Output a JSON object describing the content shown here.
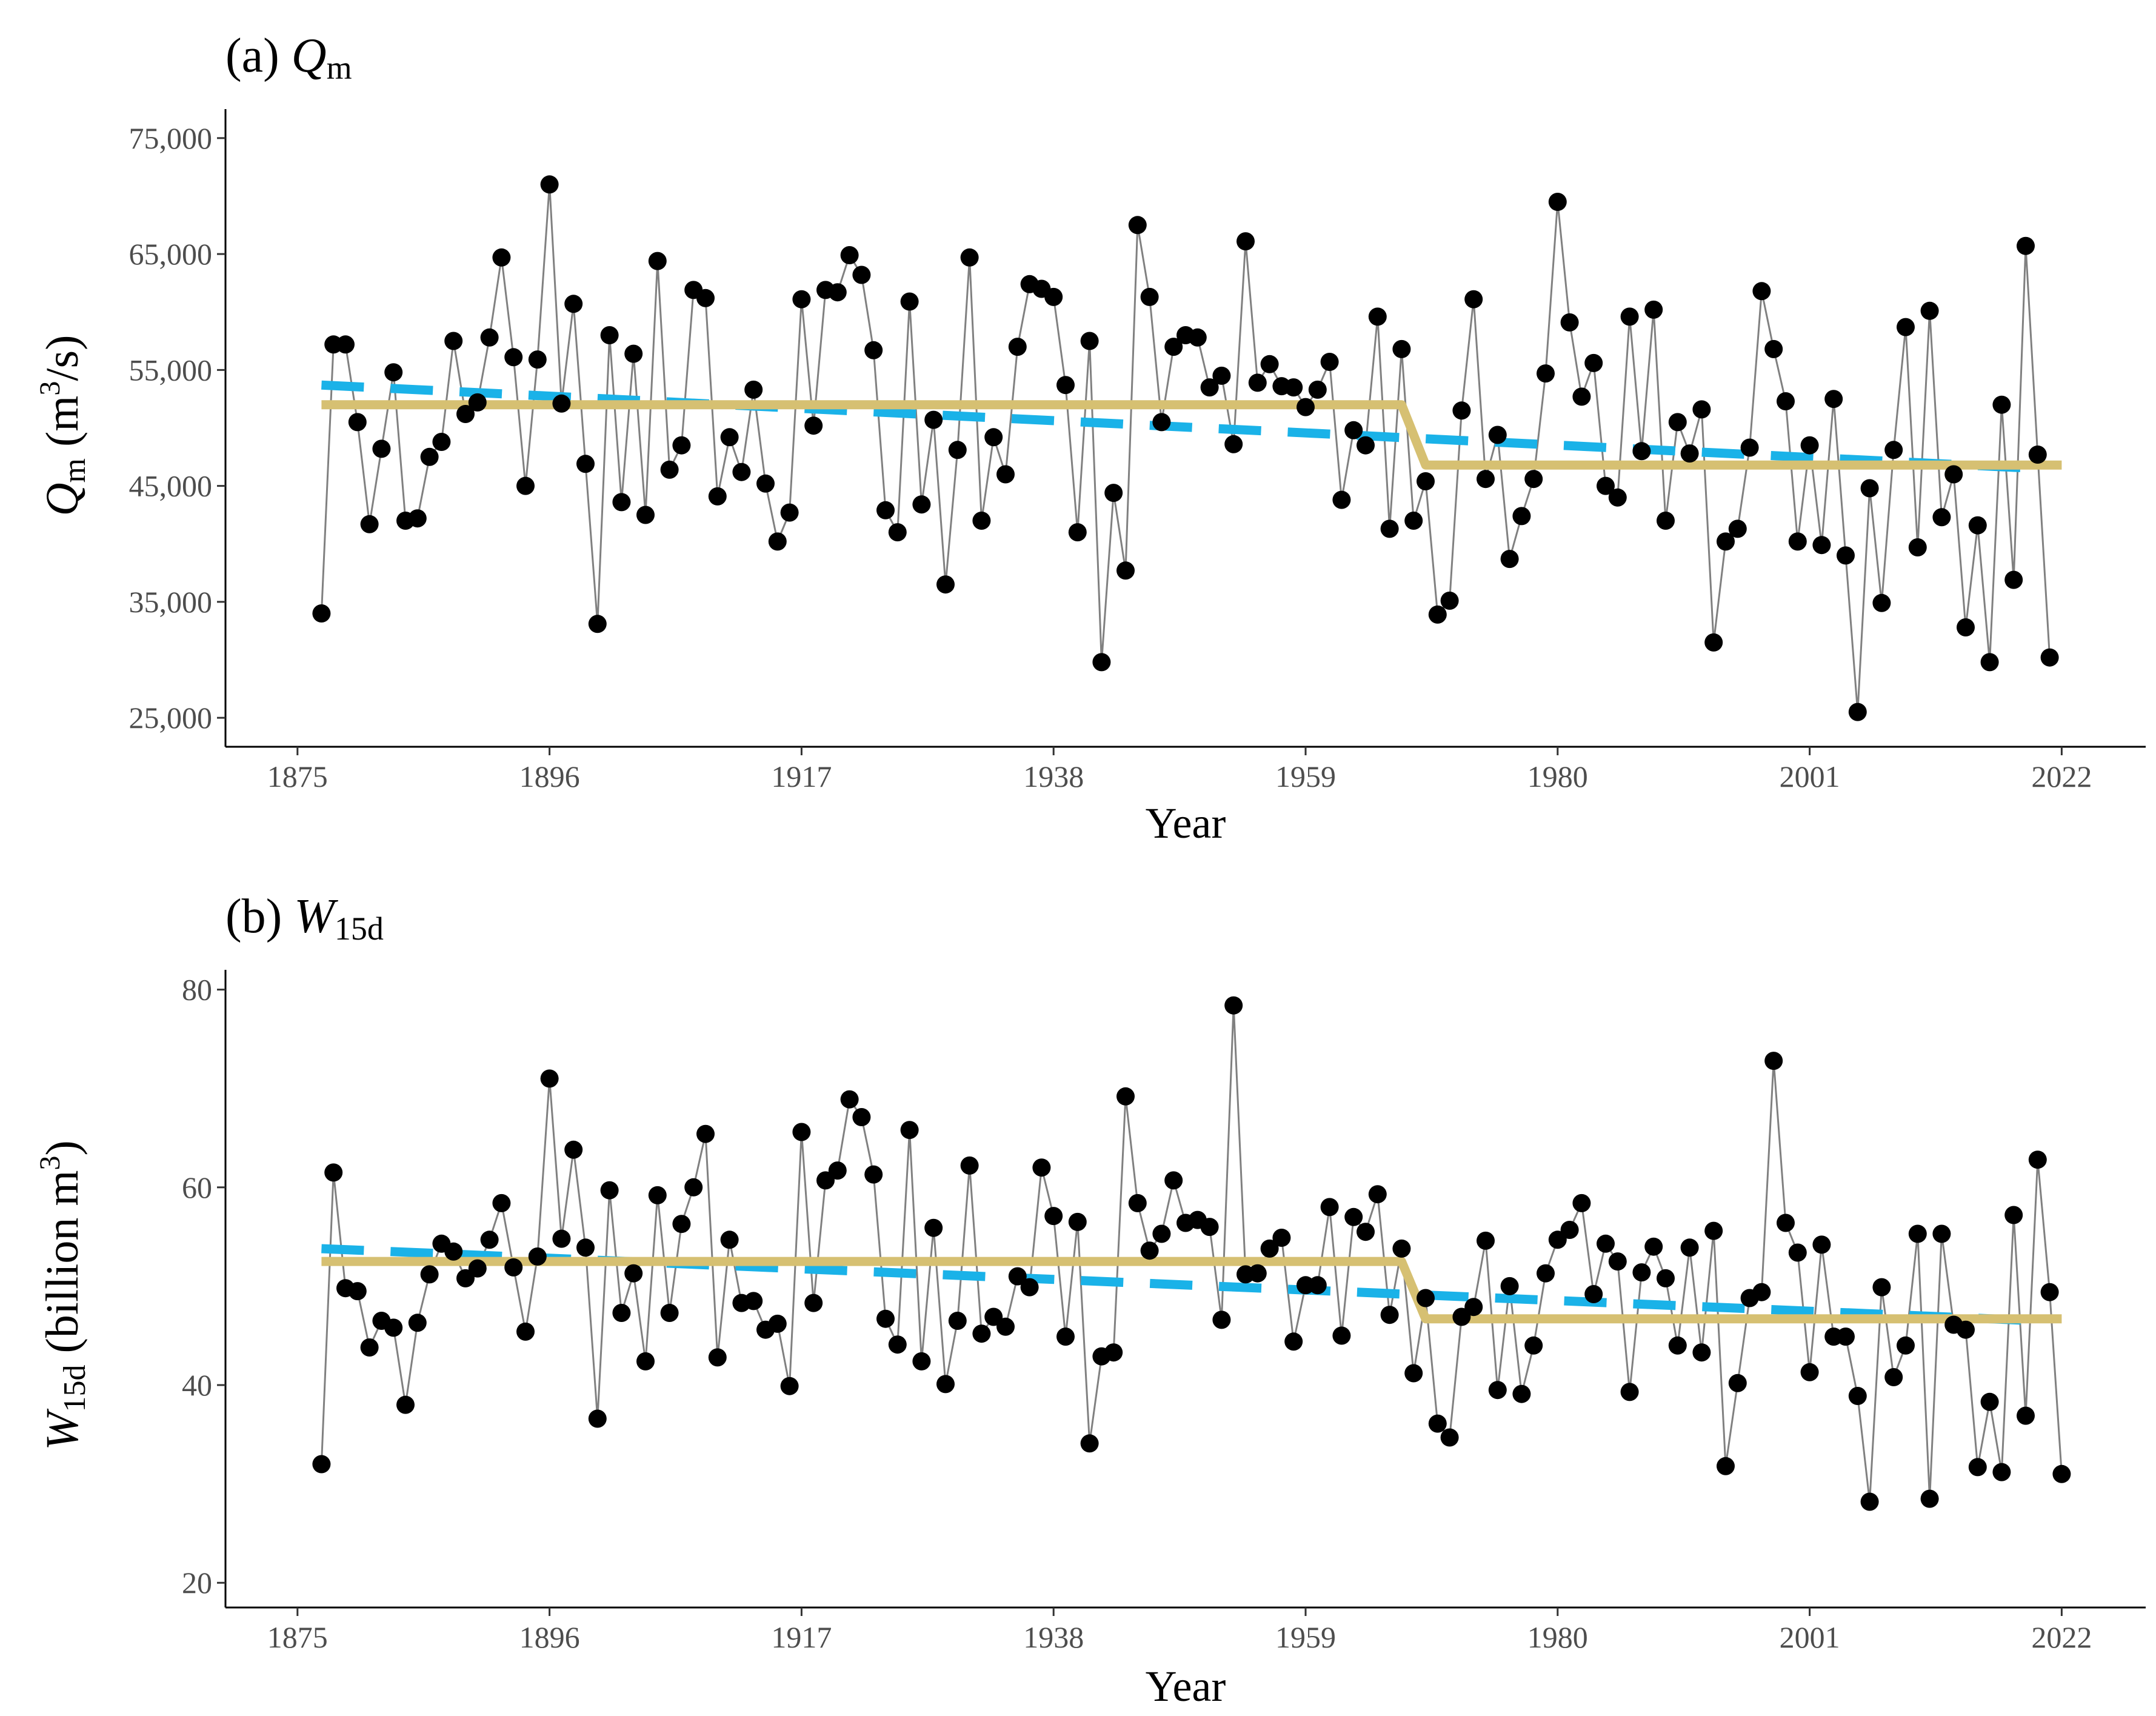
{
  "colors": {
    "observed_line": "#808080",
    "points": "#000000",
    "trend_line": "#1ab2e8",
    "step_line": "#d6c072",
    "axis": "#000000"
  },
  "chart_data": [
    {
      "type": "line",
      "panel": "a",
      "title_prefix": "(a) ",
      "title_var": "Q",
      "title_sub": "m",
      "xlabel": "Year",
      "ylabel_var": "Q",
      "ylabel_sub": "m",
      "ylabel_unit_open": " (m",
      "ylabel_unit_sup": "3",
      "ylabel_unit_close": "/s)",
      "xlim": [
        1869,
        2029
      ],
      "ylim": [
        22500,
        77500
      ],
      "xticks": [
        1875,
        1896,
        1917,
        1938,
        1959,
        1980,
        2001,
        2022
      ],
      "xtick_labels": [
        "1875",
        "1896",
        "1917",
        "1938",
        "1959",
        "1980",
        "2001",
        "2022"
      ],
      "yticks": [
        25000,
        35000,
        45000,
        55000,
        65000,
        75000
      ],
      "ytick_labels": [
        "25,000",
        "35,000",
        "45,000",
        "55,000",
        "65,000",
        "75,000"
      ],
      "start_year": 1877,
      "values": [
        34000,
        57200,
        57200,
        50500,
        41700,
        48200,
        54800,
        42000,
        42200,
        47500,
        48800,
        57500,
        51200,
        52200,
        57800,
        64700,
        56100,
        45000,
        55900,
        71000,
        52100,
        60700,
        46900,
        33100,
        58000,
        43600,
        56400,
        42500,
        64400,
        46400,
        48500,
        61900,
        61200,
        44100,
        49200,
        46200,
        53300,
        45200,
        40200,
        42700,
        61100,
        50200,
        61900,
        61700,
        64900,
        63200,
        56700,
        42900,
        41000,
        60900,
        43400,
        50700,
        36500,
        48100,
        64700,
        42000,
        49200,
        46000,
        57000,
        62400,
        62000,
        61300,
        53700,
        41000,
        57500,
        29800,
        44400,
        37700,
        67500,
        61300,
        50500,
        57000,
        58000,
        57800,
        53500,
        54500,
        48600,
        66100,
        53900,
        55500,
        53600,
        53500,
        51800,
        53300,
        55700,
        43800,
        49800,
        48500,
        59600,
        41300,
        56800,
        42000,
        45400,
        33900,
        35100,
        51500,
        61100,
        45600,
        49400,
        38700,
        42400,
        45600,
        54700,
        69500,
        59100,
        52700,
        55600,
        45000,
        44000,
        59600,
        48000,
        60200,
        42000,
        50500,
        47800,
        51600,
        31500,
        40200,
        41300,
        48300,
        61800,
        56800,
        52300,
        40200,
        48500,
        39900,
        52500,
        39000,
        25500,
        44800,
        34900,
        48100,
        58700,
        39700,
        60100,
        42300,
        46000,
        32800,
        41600,
        29800,
        52000,
        36900,
        65700,
        47700,
        30200
      ],
      "trend": {
        "start": [
          1877,
          53700
        ],
        "end": [
          2020,
          46500
        ]
      },
      "step": {
        "before": 52000,
        "after": 46800,
        "break_start": 1967,
        "break_end": 1969,
        "x_start": 1877,
        "x_end": 2022
      }
    },
    {
      "type": "line",
      "panel": "b",
      "title_prefix": "(b) ",
      "title_var": "W",
      "title_sub": "15d",
      "xlabel": "Year",
      "ylabel_var": "W",
      "ylabel_sub": "15d",
      "ylabel_unit_open": " (billion m",
      "ylabel_unit_sup": "3",
      "ylabel_unit_close": ")",
      "xlim": [
        1869,
        2029
      ],
      "ylim": [
        17500,
        82000
      ],
      "xticks": [
        1875,
        1896,
        1917,
        1938,
        1959,
        1980,
        2001,
        2022
      ],
      "xtick_labels": [
        "1875",
        "1896",
        "1917",
        "1938",
        "1959",
        "1980",
        "2001",
        "2022"
      ],
      "yticks": [
        20000,
        40000,
        60000,
        80000
      ],
      "ytick_labels": [
        "20",
        "40",
        "60",
        "80"
      ],
      "start_year": 1877,
      "values": [
        32000,
        61500,
        49800,
        49500,
        43800,
        46500,
        45800,
        38000,
        46300,
        51200,
        54300,
        53500,
        50800,
        51800,
        54700,
        58400,
        51900,
        45400,
        53000,
        71000,
        54800,
        63800,
        53900,
        36600,
        59700,
        47300,
        51300,
        42400,
        59200,
        47300,
        56300,
        60000,
        65400,
        42800,
        54700,
        48300,
        48500,
        45600,
        46200,
        39900,
        65600,
        48300,
        60700,
        61700,
        68900,
        67100,
        61300,
        46700,
        44100,
        65800,
        42400,
        55900,
        40100,
        46500,
        62200,
        45200,
        46900,
        45900,
        51000,
        49900,
        62000,
        57100,
        44900,
        56500,
        34100,
        42900,
        43300,
        69200,
        58400,
        53600,
        55300,
        60700,
        56400,
        56700,
        56000,
        46600,
        78400,
        51200,
        51300,
        53800,
        54900,
        44400,
        50100,
        50100,
        58000,
        45000,
        57000,
        55500,
        59300,
        47100,
        53800,
        41200,
        48800,
        36100,
        34700,
        46900,
        47900,
        54600,
        39500,
        50000,
        39100,
        44000,
        51300,
        54700,
        55700,
        58400,
        49200,
        54300,
        52500,
        39300,
        51400,
        54000,
        50800,
        44000,
        53900,
        43300,
        55600,
        31800,
        40200,
        48800,
        49400,
        72800,
        56400,
        53400,
        41300,
        54200,
        44900,
        44900,
        38900,
        28200,
        49900,
        40800,
        44000,
        55300,
        28500,
        55300,
        46100,
        45600,
        31700,
        38300,
        31200,
        57200,
        36900,
        62800,
        49400,
        31000
      ],
      "trend": {
        "start": [
          1877,
          53800
        ],
        "end": [
          2020,
          46500
        ]
      },
      "step": {
        "before": 52500,
        "after": 46700,
        "break_start": 1967,
        "break_end": 1969,
        "x_start": 1877,
        "x_end": 2022
      }
    }
  ]
}
